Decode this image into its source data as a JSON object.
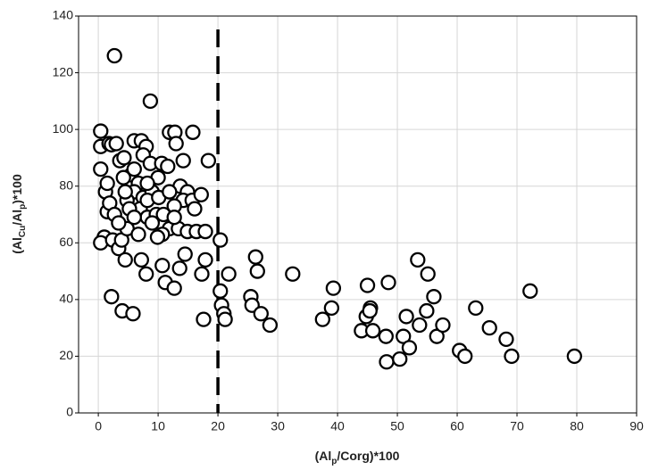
{
  "chart_data": {
    "type": "scatter",
    "xlabel": [
      "(Al",
      "p",
      "/Corg)*100"
    ],
    "ylabel": [
      "(Al",
      "Cu",
      "/Al",
      "p",
      ")*100"
    ],
    "xlim": [
      -3.3,
      90
    ],
    "ylim": [
      0,
      140
    ],
    "xticks": [
      0,
      10,
      20,
      30,
      40,
      50,
      60,
      70,
      80,
      90
    ],
    "yticks": [
      0,
      20,
      40,
      60,
      80,
      100,
      120,
      140
    ],
    "grid": true,
    "color": "#000000",
    "vline": 20,
    "x": [
      2.7,
      8.7,
      0.4,
      0.4,
      0.4,
      1,
      0.4,
      1.5,
      1.8,
      2.2,
      3,
      2.4,
      2.2,
      4,
      5.8,
      3.4,
      3.9,
      4.8,
      3.6,
      4.3,
      6,
      7.2,
      8,
      7.5,
      8.7,
      5.5,
      6.7,
      6,
      4.8,
      7.5,
      9,
      10,
      10.6,
      11.6,
      11.9,
      12.8,
      13,
      15.8,
      13.7,
      14.2,
      14.9,
      14.2,
      15.7,
      16.1,
      17.2,
      18.4,
      7,
      8.2,
      9.7,
      10.9,
      12.7,
      11.9,
      13.4,
      14.9,
      16.4,
      17.9,
      7.2,
      8,
      10.7,
      11.2,
      12.7,
      13.6,
      14.5,
      17.3,
      17.9,
      17.6,
      20.4,
      21.8,
      20.4,
      20.6,
      21,
      21.2,
      25.5,
      25.7,
      26.6,
      26.3,
      27.2,
      28.7,
      32.5,
      37.5,
      39,
      39.3,
      44,
      44.8,
      45.5,
      45.9,
      45,
      48.5,
      48.1,
      48.2,
      50.4,
      51,
      51.5,
      52,
      53.4,
      53.7,
      54.9,
      55.1,
      56.1,
      56.6,
      57.6,
      63.1,
      65.4,
      68.2,
      69.1,
      72.2,
      60.4,
      61.3,
      79.6,
      45.4,
      1.2,
      1.5,
      1.9,
      2.7,
      3.4,
      4.5,
      5.2,
      6,
      6.7,
      8.2,
      9,
      10.1,
      11.9,
      12.7,
      10.7,
      4.5,
      8.2,
      6,
      4.2,
      9.9
    ],
    "values": [
      126,
      110,
      99.4,
      86,
      94,
      62,
      60,
      71,
      95,
      94.6,
      95,
      61,
      41,
      36,
      35,
      58,
      61,
      65,
      89,
      90,
      96,
      96,
      94,
      91,
      88,
      84,
      81,
      78,
      75,
      76,
      78,
      83,
      88,
      87,
      99,
      99,
      95,
      99,
      80,
      89,
      78,
      75,
      75,
      72,
      77,
      89,
      72,
      69,
      70,
      70,
      73,
      65,
      65,
      64,
      64,
      64,
      54,
      49,
      52,
      46,
      44,
      51,
      56,
      49,
      54,
      33,
      61,
      49,
      43,
      38,
      35,
      33,
      41,
      38,
      50,
      55,
      35,
      31,
      49,
      33,
      37,
      44,
      29,
      34,
      37,
      29,
      45,
      46,
      27,
      18,
      19,
      27,
      34,
      23,
      54,
      31,
      36,
      49,
      41,
      27,
      31,
      37,
      30,
      26,
      20,
      43,
      22,
      20,
      20,
      36,
      78,
      81,
      74,
      70,
      67,
      78,
      72,
      69,
      63,
      75,
      67,
      76,
      78,
      69,
      63,
      54,
      81,
      86,
      83,
      62
    ]
  }
}
